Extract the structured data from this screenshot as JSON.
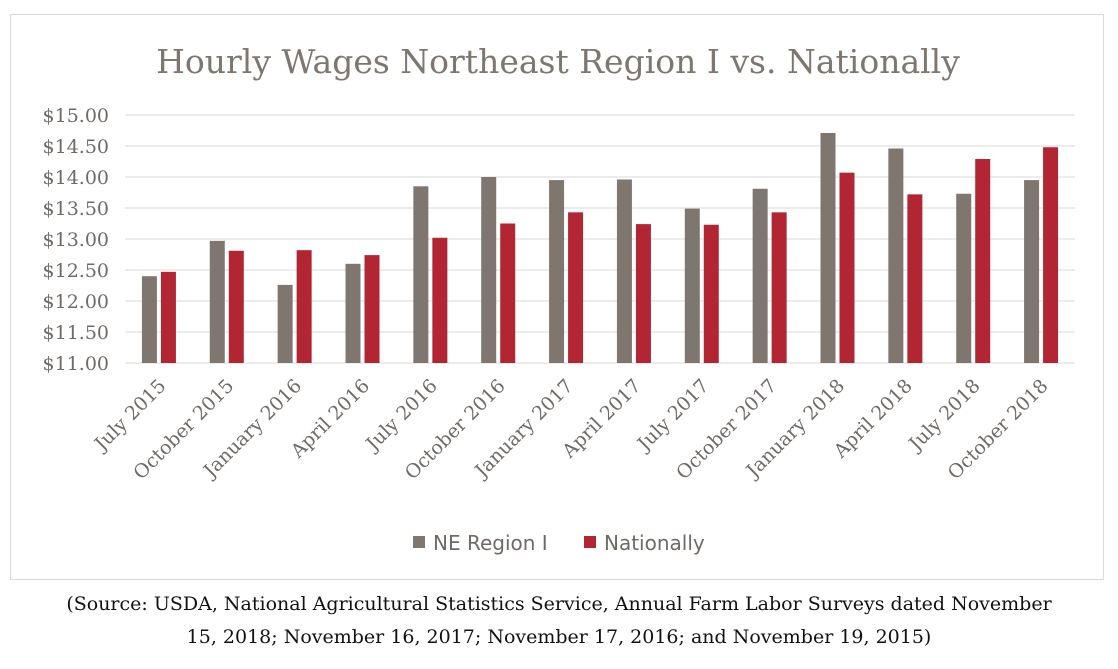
{
  "chart_data": {
    "type": "bar",
    "title": "Hourly Wages Northeast Region I vs. Nationally",
    "categories": [
      "July 2015",
      "October 2015",
      "January 2016",
      "April 2016",
      "July 2016",
      "October 2016",
      "January 2017",
      "April 2017",
      "July 2017",
      "October 2017",
      "January 2018",
      "April 2018",
      "July 2018",
      "October 2018"
    ],
    "series": [
      {
        "name": "NE Region I",
        "color": "#7f7670",
        "values": [
          12.4,
          12.97,
          12.26,
          12.6,
          13.85,
          14.0,
          13.95,
          13.96,
          13.49,
          13.81,
          14.71,
          14.46,
          13.73,
          13.95
        ]
      },
      {
        "name": "Nationally",
        "color": "#b22532",
        "values": [
          12.47,
          12.81,
          12.82,
          12.74,
          13.02,
          13.25,
          13.43,
          13.24,
          13.23,
          13.43,
          14.07,
          13.72,
          14.29,
          14.48
        ]
      }
    ],
    "ylim": [
      11.0,
      15.0
    ],
    "yticks": [
      "$15.00",
      "$14.50",
      "$14.00",
      "$13.50",
      "$13.00",
      "$12.50",
      "$12.00",
      "$11.50",
      "$11.00"
    ],
    "ytick_values": [
      15.0,
      14.5,
      14.0,
      13.5,
      13.0,
      12.5,
      12.0,
      11.5,
      11.0
    ],
    "grid": true,
    "legend_position": "bottom"
  },
  "source_note": {
    "line1": "(Source: USDA, National Agricultural Statistics Service, Annual Farm Labor Surveys dated November",
    "line2": "15, 2018; November 16, 2017; November 17, 2016; and November 19, 2015)"
  }
}
